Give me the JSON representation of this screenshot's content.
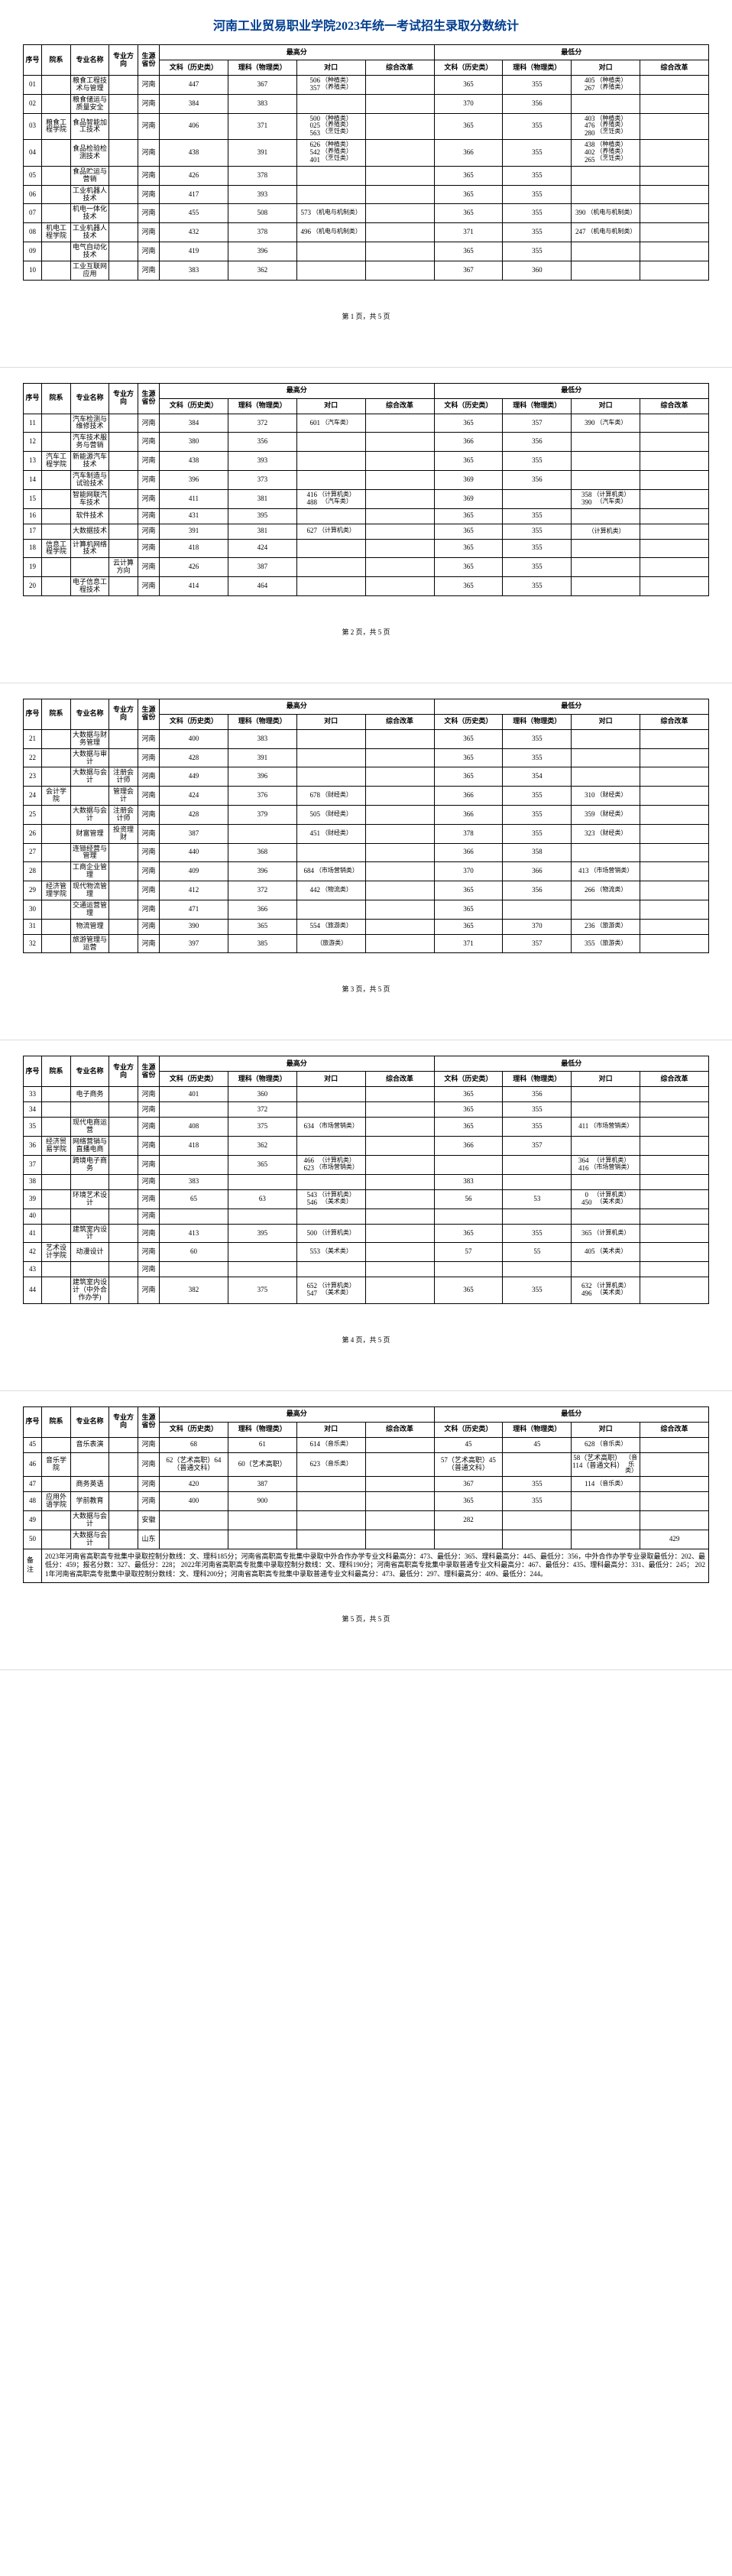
{
  "title": "河南工业贸易职业学院2023年统一考试招生录取分数统计",
  "headers": {
    "seq": "序号",
    "dept": "院系",
    "major": "专业名称",
    "direction": "专业方向",
    "province": "生源省份",
    "max_group": "最高分",
    "min_group": "最低分",
    "wenke": "文科（历史类）",
    "like": "理科（物理类）",
    "duikou": "对口",
    "zonghe": "综合改革"
  },
  "pages": [
    {
      "pager": "第 1 页，共 5 页",
      "rows": [
        {
          "seq": "01",
          "dept": "",
          "major": "粮食工程技术与管理",
          "dir": "",
          "prov": "河南",
          "mw": "447",
          "ml": "367",
          "md": "506 357",
          "md_note": "（种植类）（养殖类）",
          "mz": "",
          "nw": "365",
          "nl": "355",
          "nd": "405 267",
          "nd_note": "（种植类）（养殖类）",
          "nz": ""
        },
        {
          "seq": "02",
          "dept": "",
          "major": "粮食储运与质量安全",
          "dir": "",
          "prov": "河南",
          "mw": "384",
          "ml": "383",
          "md": "",
          "md_note": "",
          "mz": "",
          "nw": "370",
          "nl": "356",
          "nd": "",
          "nd_note": "",
          "nz": ""
        },
        {
          "seq": "03",
          "dept": "粮食工程学院",
          "major": "食品智能加工技术",
          "dir": "",
          "prov": "河南",
          "mw": "406",
          "ml": "371",
          "md": "500 025 563",
          "md_note": "（种植类）（养殖类）（烹饪类）",
          "mz": "",
          "nw": "365",
          "nl": "355",
          "nd": "403 476 280",
          "nd_note": "（种植类）（养殖类）（烹饪类）",
          "nz": ""
        },
        {
          "seq": "04",
          "dept": "",
          "major": "食品检验检测技术",
          "dir": "",
          "prov": "河南",
          "mw": "438",
          "ml": "391",
          "md": "626 542 401",
          "md_note": "（种植类）（养殖类）（烹饪类）",
          "mz": "",
          "nw": "366",
          "nl": "355",
          "nd": "438 402 265",
          "nd_note": "（种植类）（养殖类）（烹饪类）",
          "nz": ""
        },
        {
          "seq": "05",
          "dept": "",
          "major": "食品贮运与营销",
          "dir": "",
          "prov": "河南",
          "mw": "426",
          "ml": "378",
          "md": "",
          "md_note": "",
          "mz": "",
          "nw": "365",
          "nl": "355",
          "nd": "",
          "nd_note": "",
          "nz": ""
        },
        {
          "seq": "06",
          "dept": "",
          "major": "工业机器人技术",
          "dir": "",
          "prov": "河南",
          "mw": "417",
          "ml": "393",
          "md": "",
          "md_note": "",
          "mz": "",
          "nw": "365",
          "nl": "355",
          "nd": "",
          "nd_note": "",
          "nz": ""
        },
        {
          "seq": "07",
          "dept": "",
          "major": "机电一体化技术",
          "dir": "",
          "prov": "河南",
          "mw": "455",
          "ml": "508",
          "md": "573",
          "md_note": "（机电与机制类）",
          "mz": "",
          "nw": "365",
          "nl": "355",
          "nd": "390",
          "nd_note": "（机电与机制类）",
          "nz": ""
        },
        {
          "seq": "08",
          "dept": "机电工程学院",
          "major": "工业机器人技术",
          "dir": "",
          "prov": "河南",
          "mw": "432",
          "ml": "378",
          "md": "496",
          "md_note": "（机电与机制类）",
          "mz": "",
          "nw": "371",
          "nl": "355",
          "nd": "247",
          "nd_note": "（机电与机制类）",
          "nz": ""
        },
        {
          "seq": "09",
          "dept": "",
          "major": "电气自动化技术",
          "dir": "",
          "prov": "河南",
          "mw": "419",
          "ml": "396",
          "md": "",
          "md_note": "",
          "mz": "",
          "nw": "365",
          "nl": "355",
          "nd": "",
          "nd_note": "",
          "nz": ""
        },
        {
          "seq": "10",
          "dept": "",
          "major": "工业互联网应用",
          "dir": "",
          "prov": "河南",
          "mw": "383",
          "ml": "362",
          "md": "",
          "md_note": "",
          "mz": "",
          "nw": "367",
          "nl": "360",
          "nd": "",
          "nd_note": "",
          "nz": ""
        }
      ]
    },
    {
      "pager": "第 2 页，共 5 页",
      "rows": [
        {
          "seq": "11",
          "dept": "",
          "major": "汽车检测与维修技术",
          "dir": "",
          "prov": "河南",
          "mw": "384",
          "ml": "372",
          "md": "601",
          "md_note": "（汽车类）",
          "mz": "",
          "nw": "365",
          "nl": "357",
          "nd": "390",
          "nd_note": "（汽车类）",
          "nz": ""
        },
        {
          "seq": "12",
          "dept": "",
          "major": "汽车技术服务与营销",
          "dir": "",
          "prov": "河南",
          "mw": "380",
          "ml": "356",
          "md": "",
          "md_note": "",
          "mz": "",
          "nw": "366",
          "nl": "356",
          "nd": "",
          "nd_note": "",
          "nz": ""
        },
        {
          "seq": "13",
          "dept": "汽车工程学院",
          "major": "新能源汽车技术",
          "dir": "",
          "prov": "河南",
          "mw": "438",
          "ml": "393",
          "md": "",
          "md_note": "",
          "mz": "",
          "nw": "365",
          "nl": "355",
          "nd": "",
          "nd_note": "",
          "nz": ""
        },
        {
          "seq": "14",
          "dept": "",
          "major": "汽车制造与试验技术",
          "dir": "",
          "prov": "河南",
          "mw": "396",
          "ml": "373",
          "md": "",
          "md_note": "",
          "mz": "",
          "nw": "369",
          "nl": "356",
          "nd": "",
          "nd_note": "",
          "nz": ""
        },
        {
          "seq": "15",
          "dept": "",
          "major": "智能网联汽车技术",
          "dir": "",
          "prov": "河南",
          "mw": "411",
          "ml": "381",
          "md": "416 488",
          "md_note": "（计算机类）（汽车类）",
          "mz": "",
          "nw": "369",
          "nl": "",
          "nd": "358 390",
          "nd_note": "（计算机类）（汽车类）",
          "nz": ""
        },
        {
          "seq": "16",
          "dept": "",
          "major": "软件技术",
          "dir": "",
          "prov": "河南",
          "mw": "431",
          "ml": "395",
          "md": "",
          "md_note": "",
          "mz": "",
          "nw": "365",
          "nl": "355",
          "nd": "",
          "nd_note": "",
          "nz": ""
        },
        {
          "seq": "17",
          "dept": "",
          "major": "大数据技术",
          "dir": "",
          "prov": "河南",
          "mw": "391",
          "ml": "381",
          "md": "627",
          "md_note": "（计算机类）",
          "mz": "",
          "nw": "365",
          "nl": "355",
          "nd": "",
          "nd_note": "（计算机类）",
          "nz": ""
        },
        {
          "seq": "18",
          "dept": "信息工程学院",
          "major": "计算机网络技术",
          "dir": "",
          "prov": "河南",
          "mw": "418",
          "ml": "424",
          "md": "",
          "md_note": "",
          "mz": "",
          "nw": "365",
          "nl": "355",
          "nd": "",
          "nd_note": "",
          "nz": ""
        },
        {
          "seq": "19",
          "dept": "",
          "major": "",
          "dir": "云计算方向",
          "prov": "河南",
          "mw": "426",
          "ml": "387",
          "md": "",
          "md_note": "",
          "mz": "",
          "nw": "365",
          "nl": "355",
          "nd": "",
          "nd_note": "",
          "nz": ""
        },
        {
          "seq": "20",
          "dept": "",
          "major": "电子信息工程技术",
          "dir": "",
          "prov": "河南",
          "mw": "414",
          "ml": "464",
          "md": "",
          "md_note": "",
          "mz": "",
          "nw": "365",
          "nl": "355",
          "nd": "",
          "nd_note": "",
          "nz": ""
        }
      ]
    },
    {
      "pager": "第 3 页，共 5 页",
      "rows": [
        {
          "seq": "21",
          "dept": "",
          "major": "大数据与财务管理",
          "dir": "",
          "prov": "河南",
          "mw": "400",
          "ml": "383",
          "md": "",
          "md_note": "",
          "mz": "",
          "nw": "365",
          "nl": "355",
          "nd": "",
          "nd_note": "",
          "nz": ""
        },
        {
          "seq": "22",
          "dept": "",
          "major": "大数据与审计",
          "dir": "",
          "prov": "河南",
          "mw": "428",
          "ml": "391",
          "md": "",
          "md_note": "",
          "mz": "",
          "nw": "365",
          "nl": "355",
          "nd": "",
          "nd_note": "",
          "nz": ""
        },
        {
          "seq": "23",
          "dept": "",
          "major": "大数据与会计",
          "dir": "注册会计师",
          "prov": "河南",
          "mw": "449",
          "ml": "396",
          "md": "",
          "md_note": "",
          "mz": "",
          "nw": "365",
          "nl": "354",
          "nd": "",
          "nd_note": "",
          "nz": ""
        },
        {
          "seq": "24",
          "dept": "会计学院",
          "major": "",
          "dir": "管理会计",
          "prov": "河南",
          "mw": "424",
          "ml": "376",
          "md": "678",
          "md_note": "（财经类）",
          "mz": "",
          "nw": "366",
          "nl": "355",
          "nd": "310",
          "nd_note": "（财经类）",
          "nz": ""
        },
        {
          "seq": "25",
          "dept": "",
          "major": "大数据与会计",
          "dir": "注册会计师",
          "prov": "河南",
          "mw": "428",
          "ml": "379",
          "md": "505",
          "md_note": "（财经类）",
          "mz": "",
          "nw": "366",
          "nl": "355",
          "nd": "359",
          "nd_note": "（财经类）",
          "nz": ""
        },
        {
          "seq": "26",
          "dept": "",
          "major": "财富管理",
          "dir": "投资理财",
          "prov": "河南",
          "mw": "387",
          "ml": "",
          "md": "451",
          "md_note": "（财经类）",
          "mz": "",
          "nw": "378",
          "nl": "355",
          "nd": "323",
          "nd_note": "（财经类）",
          "nz": ""
        },
        {
          "seq": "27",
          "dept": "",
          "major": "连锁经营与管理",
          "dir": "",
          "prov": "河南",
          "mw": "440",
          "ml": "368",
          "md": "",
          "md_note": "",
          "mz": "",
          "nw": "366",
          "nl": "358",
          "nd": "",
          "nd_note": "",
          "nz": ""
        },
        {
          "seq": "28",
          "dept": "",
          "major": "工商企业管理",
          "dir": "",
          "prov": "河南",
          "mw": "409",
          "ml": "396",
          "md": "684",
          "md_note": "（市场营销类）",
          "mz": "",
          "nw": "370",
          "nl": "366",
          "nd": "413",
          "nd_note": "（市场营销类）",
          "nz": ""
        },
        {
          "seq": "29",
          "dept": "经济管理学院",
          "major": "现代物流管理",
          "dir": "",
          "prov": "河南",
          "mw": "412",
          "ml": "372",
          "md": "442",
          "md_note": "（物流类）",
          "mz": "",
          "nw": "365",
          "nl": "356",
          "nd": "266",
          "nd_note": "（物流类）",
          "nz": ""
        },
        {
          "seq": "30",
          "dept": "",
          "major": "交通运营管理",
          "dir": "",
          "prov": "河南",
          "mw": "471",
          "ml": "366",
          "md": "",
          "md_note": "",
          "mz": "",
          "nw": "365",
          "nl": "",
          "nd": "",
          "nd_note": "",
          "nz": ""
        },
        {
          "seq": "31",
          "dept": "",
          "major": "物流管理",
          "dir": "",
          "prov": "河南",
          "mw": "390",
          "ml": "365",
          "md": "554",
          "md_note": "（旅游类）",
          "mz": "",
          "nw": "365",
          "nl": "370",
          "nd": "236",
          "nd_note": "（旅游类）",
          "nz": ""
        },
        {
          "seq": "32",
          "dept": "",
          "major": "旅游管理与运营",
          "dir": "",
          "prov": "河南",
          "mw": "397",
          "ml": "385",
          "md": "",
          "md_note": "（旅游类）",
          "mz": "",
          "nw": "371",
          "nl": "357",
          "nd": "355",
          "nd_note": "（旅游类）",
          "nz": ""
        }
      ]
    },
    {
      "pager": "第 4 页，共 5 页",
      "rows": [
        {
          "seq": "33",
          "dept": "",
          "major": "电子商务",
          "dir": "",
          "prov": "河南",
          "mw": "401",
          "ml": "360",
          "md": "",
          "md_note": "",
          "mz": "",
          "nw": "365",
          "nl": "356",
          "nd": "",
          "nd_note": "",
          "nz": ""
        },
        {
          "seq": "34",
          "dept": "",
          "major": "",
          "dir": "",
          "prov": "河南",
          "mw": "",
          "ml": "372",
          "md": "",
          "md_note": "",
          "mz": "",
          "nw": "365",
          "nl": "355",
          "nd": "",
          "nd_note": "",
          "nz": ""
        },
        {
          "seq": "35",
          "dept": "",
          "major": "现代电商运营",
          "dir": "",
          "prov": "河南",
          "mw": "408",
          "ml": "375",
          "md": "634",
          "md_note": "（市场营销类）",
          "mz": "",
          "nw": "365",
          "nl": "355",
          "nd": "411",
          "nd_note": "（市场营销类）",
          "nz": ""
        },
        {
          "seq": "36",
          "dept": "经济贸易学院",
          "major": "网络营销与直播电商",
          "dir": "",
          "prov": "河南",
          "mw": "418",
          "ml": "362",
          "md": "",
          "md_note": "",
          "mz": "",
          "nw": "366",
          "nl": "357",
          "nd": "",
          "nd_note": "",
          "nz": ""
        },
        {
          "seq": "37",
          "dept": "",
          "major": "跨境电子商务",
          "dir": "",
          "prov": "河南",
          "mw": "",
          "ml": "365",
          "md": "466 623",
          "md_note": "（计算机类）（市场营销类）",
          "mz": "",
          "nw": "",
          "nl": "",
          "nd": "364 416",
          "nd_note": "（计算机类）（市场营销类）",
          "nz": ""
        },
        {
          "seq": "38",
          "dept": "",
          "major": "",
          "dir": "",
          "prov": "河南",
          "mw": "383",
          "ml": "",
          "md": "",
          "md_note": "",
          "mz": "",
          "nw": "383",
          "nl": "",
          "nd": "",
          "nd_note": "",
          "nz": ""
        },
        {
          "seq": "39",
          "dept": "",
          "major": "环境艺术设计",
          "dir": "",
          "prov": "河南",
          "mw": "65",
          "ml": "63",
          "md": "543 546",
          "md_note": "（计算机类）（美术类）",
          "mz": "",
          "nw": "56",
          "nl": "53",
          "nd": "0 450",
          "nd_note": "（计算机类）（美术类）",
          "nz": ""
        },
        {
          "seq": "40",
          "dept": "",
          "major": "",
          "dir": "",
          "prov": "河南",
          "mw": "",
          "ml": "",
          "md": "",
          "md_note": "",
          "mz": "",
          "nw": "",
          "nl": "",
          "nd": "",
          "nd_note": "",
          "nz": ""
        },
        {
          "seq": "41",
          "dept": "",
          "major": "建筑室内设计",
          "dir": "",
          "prov": "河南",
          "mw": "413",
          "ml": "395",
          "md": "500",
          "md_note": "（计算机类）",
          "mz": "",
          "nw": "365",
          "nl": "355",
          "nd": "365",
          "nd_note": "（计算机类）",
          "nz": ""
        },
        {
          "seq": "42",
          "dept": "艺术设计学院",
          "major": "动漫设计",
          "dir": "",
          "prov": "河南",
          "mw": "60",
          "ml": "",
          "md": "553",
          "md_note": "（美术类）",
          "mz": "",
          "nw": "57",
          "nl": "55",
          "nd": "405",
          "nd_note": "（美术类）",
          "nz": ""
        },
        {
          "seq": "43",
          "dept": "",
          "major": "",
          "dir": "",
          "prov": "河南",
          "mw": "",
          "ml": "",
          "md": "",
          "md_note": "",
          "mz": "",
          "nw": "",
          "nl": "",
          "nd": "",
          "nd_note": "",
          "nz": ""
        },
        {
          "seq": "44",
          "dept": "",
          "major": "建筑室内设计（中外合作办学)",
          "dir": "",
          "prov": "河南",
          "mw": "382",
          "ml": "375",
          "md": "652 547",
          "md_note": "（计算机类）（美术类）",
          "mz": "",
          "nw": "365",
          "nl": "355",
          "nd": "632 496",
          "nd_note": "（计算机类）（美术类）",
          "nz": ""
        }
      ]
    },
    {
      "pager": "第 5 页，共 5 页",
      "rows": [
        {
          "seq": "45",
          "dept": "",
          "major": "音乐表演",
          "dir": "",
          "prov": "河南",
          "mw": "68",
          "ml": "61",
          "md": "614",
          "md_note": "（音乐类）",
          "mz": "",
          "nw": "45",
          "nl": "45",
          "nd": "628",
          "nd_note": "（音乐类）",
          "nz": ""
        },
        {
          "seq": "46",
          "dept": "音乐学院",
          "major": "",
          "dir": "",
          "prov": "河南",
          "mw": "62（艺术高职）64（普通文科）",
          "ml": "60（艺术高职）",
          "md": "623",
          "md_note": "（音乐类）",
          "mz": "",
          "nw": "57（艺术高职）45（普通文科）",
          "ml2": "",
          "nd": "58（艺术高职）114（普通文科）",
          "nd_note": "（音乐类）",
          "nz": ""
        },
        {
          "seq": "47",
          "dept": "",
          "major": "商务英语",
          "dir": "",
          "prov": "河南",
          "mw": "420",
          "ml": "387",
          "md": "",
          "md_note": "",
          "mz": "",
          "nw": "367",
          "nl": "355",
          "nd": "114",
          "nd_note": "（音乐类）",
          "nz": ""
        },
        {
          "seq": "48",
          "dept": "应用外语学院",
          "major": "学前教育",
          "dir": "",
          "prov": "河南",
          "mw": "400",
          "ml": "900",
          "md": "",
          "md_note": "",
          "mz": "",
          "nw": "365",
          "nl": "355",
          "nd": "",
          "nd_note": "",
          "nz": ""
        },
        {
          "seq": "49",
          "dept": "",
          "major": "大数据与会计",
          "dir": "",
          "prov": "安徽",
          "mw": "",
          "ml": "",
          "md": "",
          "md_note": "",
          "mz": "",
          "nw": "282",
          "nl": "",
          "nd": "",
          "nd_note": "",
          "nz": ""
        },
        {
          "seq": "50",
          "dept": "",
          "major": "大数据与会计",
          "dir": "",
          "prov": "山东",
          "mw": "",
          "ml": "",
          "md": "",
          "md_note": "",
          "mz": "",
          "nw": "",
          "nl": "",
          "nd": "",
          "nd_note": "",
          "nz": "429"
        }
      ],
      "remarks_label": "备注",
      "remarks": "2023年河南省高职高专批集中录取控制分数线：文、理科185分；河南省高职高专批集中录取中外合作办学专业文科最高分：473、最低分：365、理科最高分：445、最低分：356，中外合作办学专业录取最低分：202、最低分：459；报名分数：327、最低分：228；\n2022年河南省高职高专批集中录取控制分数线：文、理科190分；河南省高职高专批集中录取普通专业文科最高分：467、最低分：435、理科最高分：331、最低分：245；\n2021年河南省高职高专批集中录取控制分数线：文、理科200分；河南省高职高专批集中录取普通专业文科最高分：473、最低分：297、理科最高分：409、最低分：244。"
    }
  ]
}
